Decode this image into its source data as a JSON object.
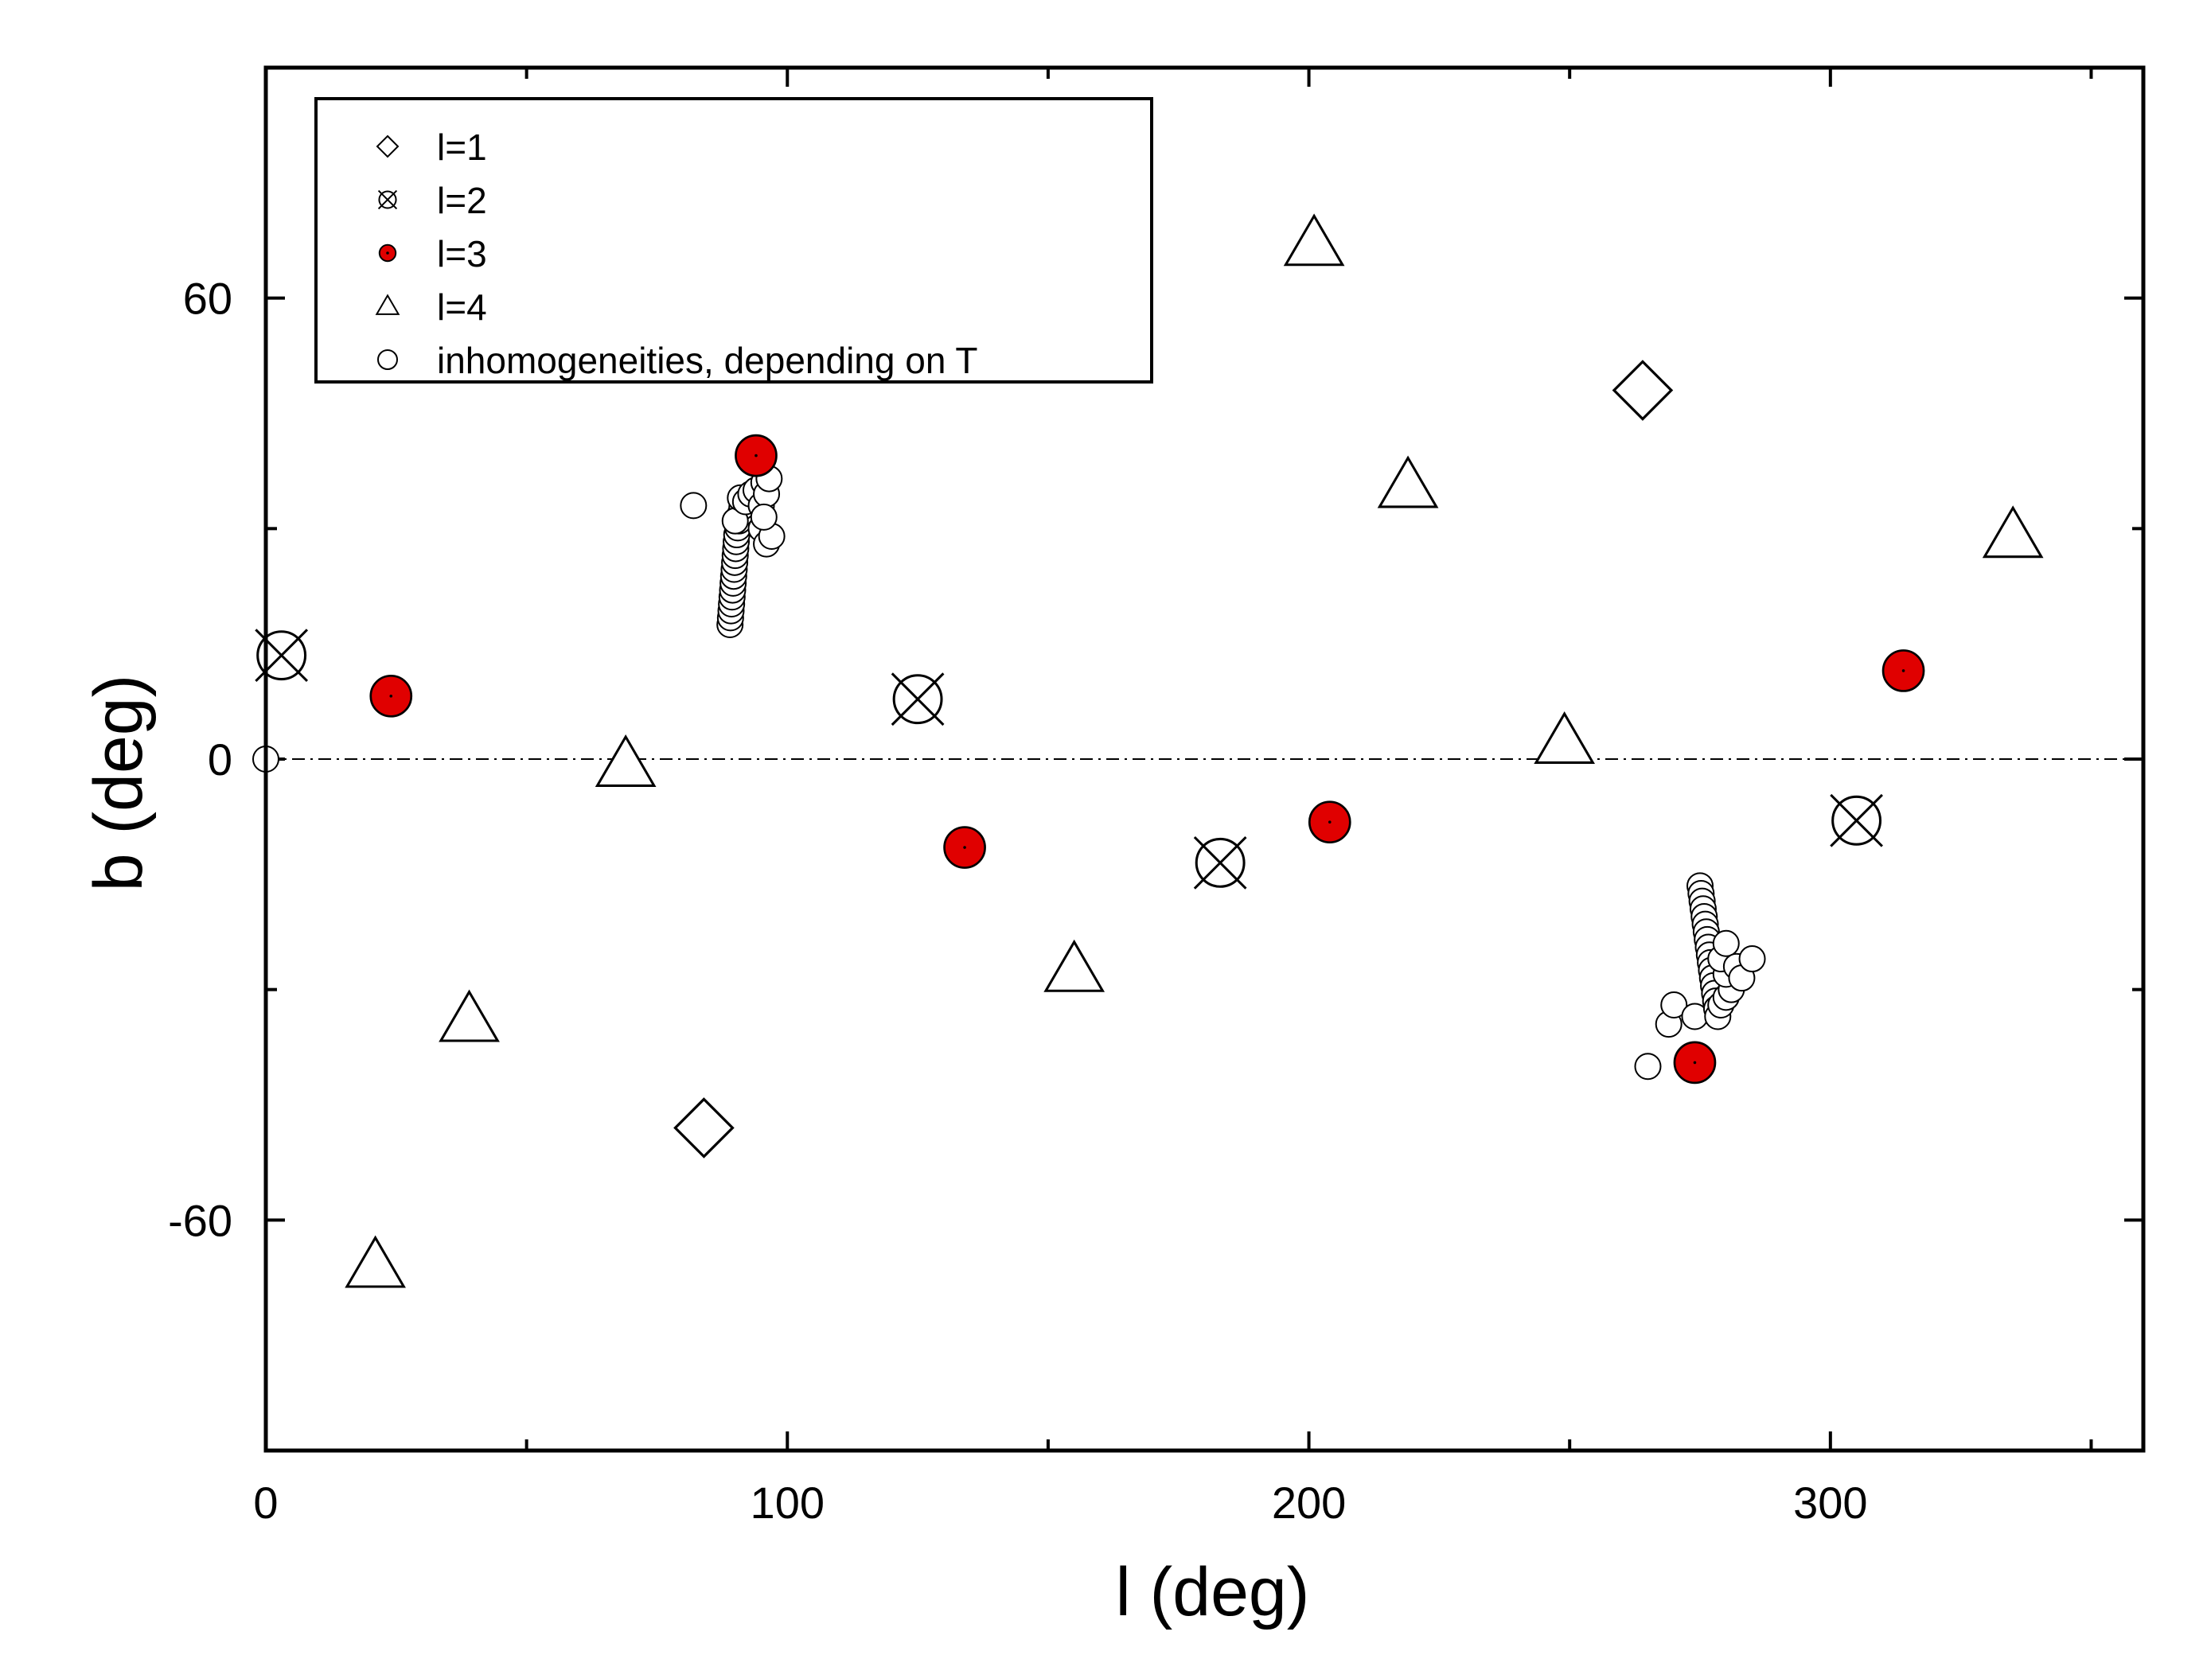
{
  "chart_data": {
    "type": "scatter",
    "xlabel": "l (deg)",
    "ylabel": "b (deg)",
    "xlim": [
      0,
      360
    ],
    "ylim": [
      -90,
      90
    ],
    "xticks": [
      0,
      100,
      200,
      300
    ],
    "xtick_labels": [
      "0",
      "100",
      "200",
      "300"
    ],
    "yticks": [
      -60,
      0,
      60
    ],
    "ytick_labels": [
      "-60",
      "0",
      "60"
    ],
    "grid": false,
    "reference_line": {
      "y": 0,
      "style": "dash-dot"
    },
    "legend_position": "top-left",
    "series": [
      {
        "name": "l=1",
        "marker": "diamond",
        "fill": "#ffffff",
        "points": [
          [
            264,
            48
          ],
          [
            84,
            -48
          ]
        ]
      },
      {
        "name": "l=2",
        "marker": "circle-x",
        "fill": "#ffffff",
        "points": [
          [
            3,
            13.5
          ],
          [
            125,
            7.8
          ],
          [
            183,
            -13.5
          ],
          [
            305,
            -8
          ]
        ]
      },
      {
        "name": "l=3",
        "marker": "circle",
        "fill": "#e00000",
        "points": [
          [
            24,
            8.2
          ],
          [
            94,
            39.5
          ],
          [
            134,
            -11.5
          ],
          [
            204,
            -8.2
          ],
          [
            274,
            -39.5
          ],
          [
            314,
            11.5
          ]
        ]
      },
      {
        "name": "l=4",
        "marker": "triangle",
        "fill": "#ffffff",
        "points": [
          [
            21,
            -66
          ],
          [
            39,
            -34
          ],
          [
            69,
            -0.8
          ],
          [
            155,
            -27.5
          ],
          [
            201,
            67
          ],
          [
            219,
            35.5
          ],
          [
            249,
            2.2
          ],
          [
            335,
            29
          ]
        ]
      },
      {
        "name": "inhomogeneities, depending on T",
        "marker": "small-circle",
        "fill": "#ffffff",
        "points": [
          [
            0,
            0
          ],
          [
            82,
            33
          ],
          [
            89,
            17.5
          ],
          [
            89.1,
            18.4
          ],
          [
            89.2,
            19.3
          ],
          [
            89.3,
            20.2
          ],
          [
            89.4,
            21.1
          ],
          [
            89.5,
            22.0
          ],
          [
            89.6,
            22.9
          ],
          [
            89.7,
            23.8
          ],
          [
            89.8,
            24.7
          ],
          [
            89.9,
            25.6
          ],
          [
            90.0,
            26.5
          ],
          [
            90.1,
            27.4
          ],
          [
            90.2,
            28.3
          ],
          [
            90.3,
            29.2
          ],
          [
            90.5,
            30.1
          ],
          [
            90.7,
            31.0
          ],
          [
            91.0,
            31.9
          ],
          [
            91.3,
            32.8
          ],
          [
            91.6,
            33.7
          ],
          [
            90,
            31
          ],
          [
            91,
            34
          ],
          [
            92,
            33.5
          ],
          [
            93,
            34.5
          ],
          [
            94,
            35
          ],
          [
            95,
            33
          ],
          [
            95.5,
            36
          ],
          [
            96,
            34.5
          ],
          [
            95,
            30
          ],
          [
            96,
            28
          ],
          [
            97,
            29
          ],
          [
            95.5,
            31.5
          ],
          [
            96.5,
            36.5
          ],
          [
            265,
            -40
          ],
          [
            269,
            -34.5
          ],
          [
            270,
            -32
          ],
          [
            274,
            -33.5
          ],
          [
            275,
            -16.5
          ],
          [
            275.2,
            -17.5
          ],
          [
            275.4,
            -18.5
          ],
          [
            275.6,
            -19.5
          ],
          [
            275.8,
            -20.5
          ],
          [
            276.0,
            -21.5
          ],
          [
            276.2,
            -22.5
          ],
          [
            276.4,
            -23.5
          ],
          [
            276.6,
            -24.5
          ],
          [
            276.8,
            -25.5
          ],
          [
            277.0,
            -26.5
          ],
          [
            277.2,
            -27.5
          ],
          [
            277.4,
            -28.5
          ],
          [
            277.6,
            -29.5
          ],
          [
            277.8,
            -30.5
          ],
          [
            278.0,
            -31.5
          ],
          [
            278.2,
            -32.5
          ],
          [
            278.4,
            -33.5
          ],
          [
            279,
            -32
          ],
          [
            280,
            -31
          ],
          [
            281,
            -30
          ],
          [
            280,
            -28
          ],
          [
            279,
            -26
          ],
          [
            280,
            -24
          ],
          [
            282,
            -27
          ],
          [
            283,
            -28.5
          ],
          [
            285,
            -26
          ]
        ]
      }
    ]
  }
}
